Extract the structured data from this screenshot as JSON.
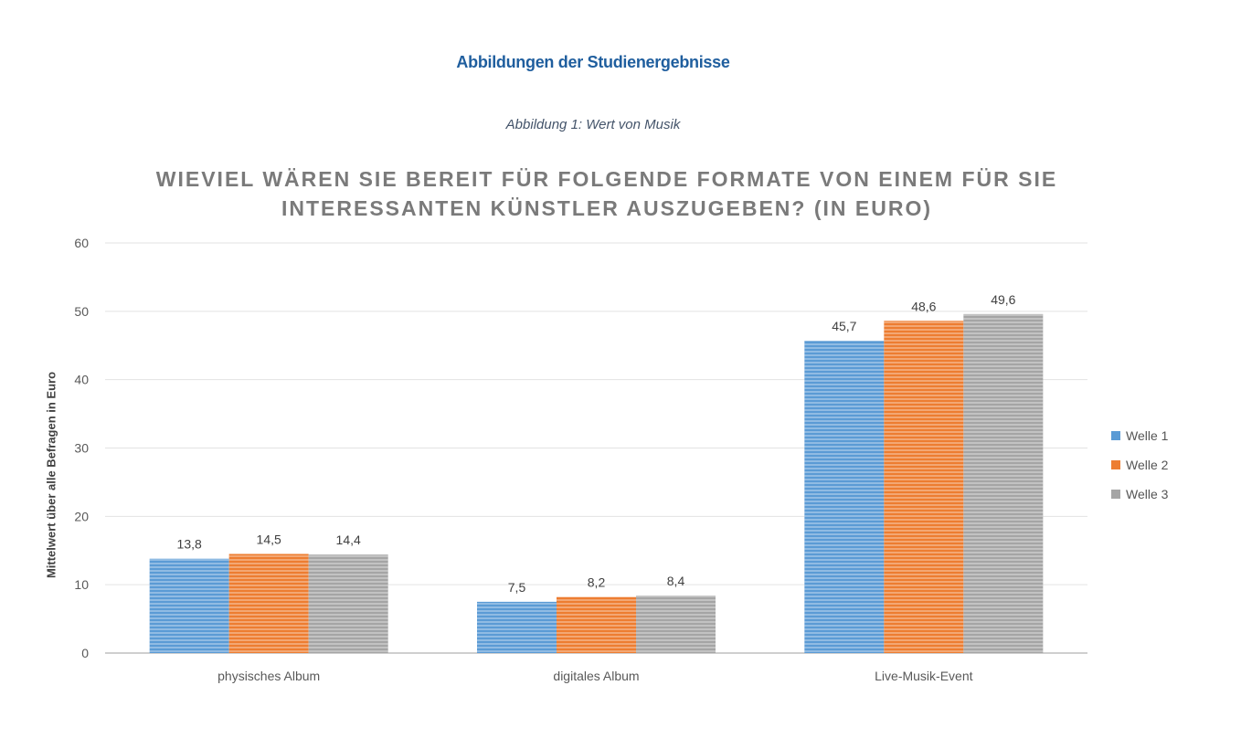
{
  "page": {
    "heading": "Abbildungen der Studienergebnisse",
    "caption": "Abbildung 1: Wert von Musik"
  },
  "chart_data": {
    "type": "bar",
    "title_lines": [
      "WIEVIEL WÄREN SIE BEREIT FÜR FOLGENDE FORMATE VON EINEM FÜR SIE",
      "INTERESSANTEN KÜNSTLER AUSZUGEBEN? (IN EURO)"
    ],
    "ylabel": "Mittelwert über alle Befragen in Euro",
    "xlabel": "",
    "ylim": [
      0,
      60
    ],
    "yticks": [
      0,
      10,
      20,
      30,
      40,
      50,
      60
    ],
    "categories": [
      "physisches Album",
      "digitales Album",
      "Live-Musik-Event"
    ],
    "series": [
      {
        "name": "Welle 1",
        "values": [
          13.8,
          7.5,
          45.7
        ],
        "labels": [
          "13,8",
          "7,5",
          "45,7"
        ],
        "color": "#5b9bd5"
      },
      {
        "name": "Welle 2",
        "values": [
          14.5,
          8.2,
          48.6
        ],
        "labels": [
          "14,5",
          "8,2",
          "48,6"
        ],
        "color": "#ed7d31"
      },
      {
        "name": "Welle 3",
        "values": [
          14.4,
          8.4,
          49.6
        ],
        "labels": [
          "14,4",
          "8,4",
          "49,6"
        ],
        "color": "#a5a5a5"
      }
    ],
    "grid": true,
    "legend_position": "right"
  }
}
